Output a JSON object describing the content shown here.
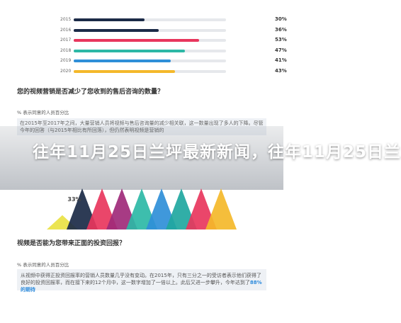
{
  "bar_chart": {
    "rows": [
      {
        "year": "2015",
        "value_label": "30%",
        "fraction": 0.3,
        "color": "#1b2a47"
      },
      {
        "year": "2016",
        "value_label": "36%",
        "fraction": 0.36,
        "color": "#1b2a47"
      },
      {
        "year": "2017",
        "value_label": "53%",
        "fraction": 0.53,
        "color": "#e8365d"
      },
      {
        "year": "2018",
        "value_label": "47%",
        "fraction": 0.47,
        "color": "#2db8a6"
      },
      {
        "year": "2019",
        "value_label": "41%",
        "fraction": 0.41,
        "color": "#2f8fd8"
      },
      {
        "year": "2020",
        "value_label": "43%",
        "fraction": 0.43,
        "color": "#f4b82a"
      }
    ]
  },
  "section1": {
    "question": "您的视频营销是否减少了您收到的售后咨询的数量？",
    "note": "% 表示同意的人员百分比",
    "body": "在2015年至2017年之间，大量营销人员将视频与售后咨询量的减少相关联，这一数量出现了多人的下降。尽管今年的回答（与2015年相比有所回落），但仍然表明视频是营销的"
  },
  "headline": "往年11月25日兰坪最新新闻，往年11月25日兰",
  "triangles": {
    "label": "33%",
    "colors": [
      "#e9e243",
      "#1b2a47",
      "#e8365d",
      "#a02a7a",
      "#2db8a6",
      "#2f8fd8",
      "#1fa7a0",
      "#e8365d",
      "#f4b82a"
    ]
  },
  "section2": {
    "question": "视频是否能为您带来正面的投资回报？",
    "note": "% 表示同意的人员百分比",
    "body_before": "从视频中获得正投资回报率的营销人员数量几乎没有变动。在2015年，只有三分之一的受访者表示他们获得了良好的投资回报率，而在接下来的12个月中，这一数字增加了一倍以上。此后又进一步攀升，今年达到了",
    "body_highlight": "88%的期待",
    "body_after": ""
  }
}
